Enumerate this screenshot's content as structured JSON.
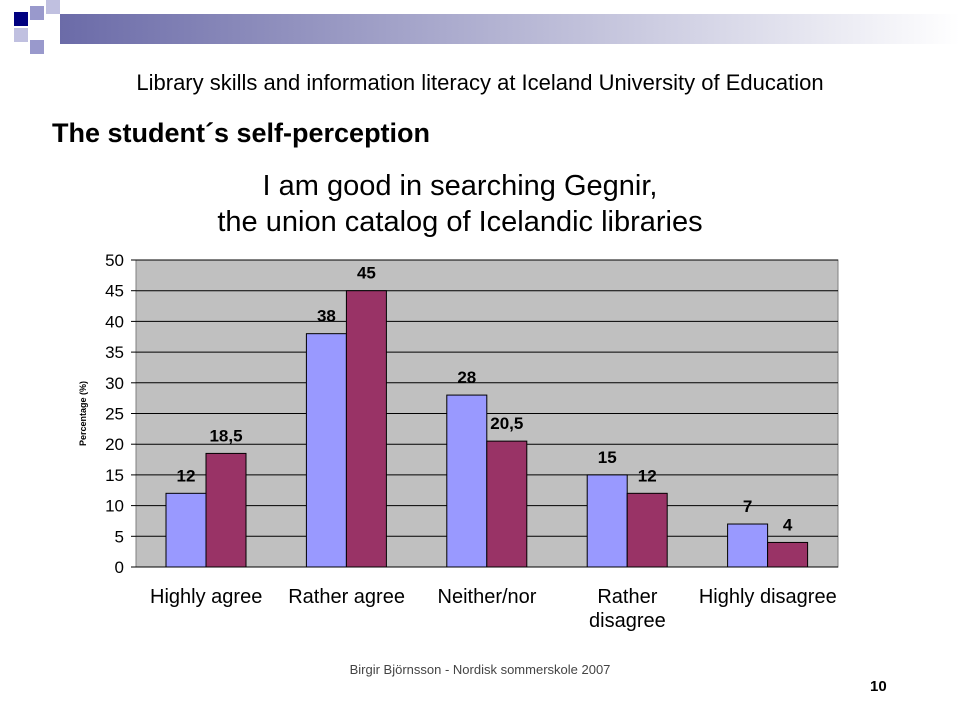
{
  "header": {
    "title": "Library skills and information literacy at Iceland University of Education",
    "heading": "The student´s self-perception"
  },
  "chart_data": {
    "type": "bar",
    "title": [
      "I am good in searching Gegnir,",
      "the union catalog of Icelandic libraries"
    ],
    "y_label": "Percentage (%)",
    "categories": [
      "Highly agree",
      "Rather agree",
      "Neither/nor",
      "Rather disagree",
      "Highly disagree"
    ],
    "series": [
      {
        "color": "#9999ff",
        "values": [
          12,
          38,
          28,
          15,
          7
        ]
      },
      {
        "color": "#993366",
        "values": [
          18.5,
          45,
          20.5,
          12,
          4
        ],
        "value_labels": [
          "18,5",
          "45",
          "20,5",
          "12",
          "4"
        ]
      }
    ],
    "ylim": [
      0,
      50
    ],
    "yticks": [
      0,
      5,
      10,
      15,
      20,
      25,
      30,
      35,
      40,
      45,
      50
    ],
    "grid": true,
    "plot_background": "#c0c0c0"
  },
  "footer": {
    "author": "Birgir Björnsson - Nordisk sommerskole 2007",
    "page": "10"
  }
}
